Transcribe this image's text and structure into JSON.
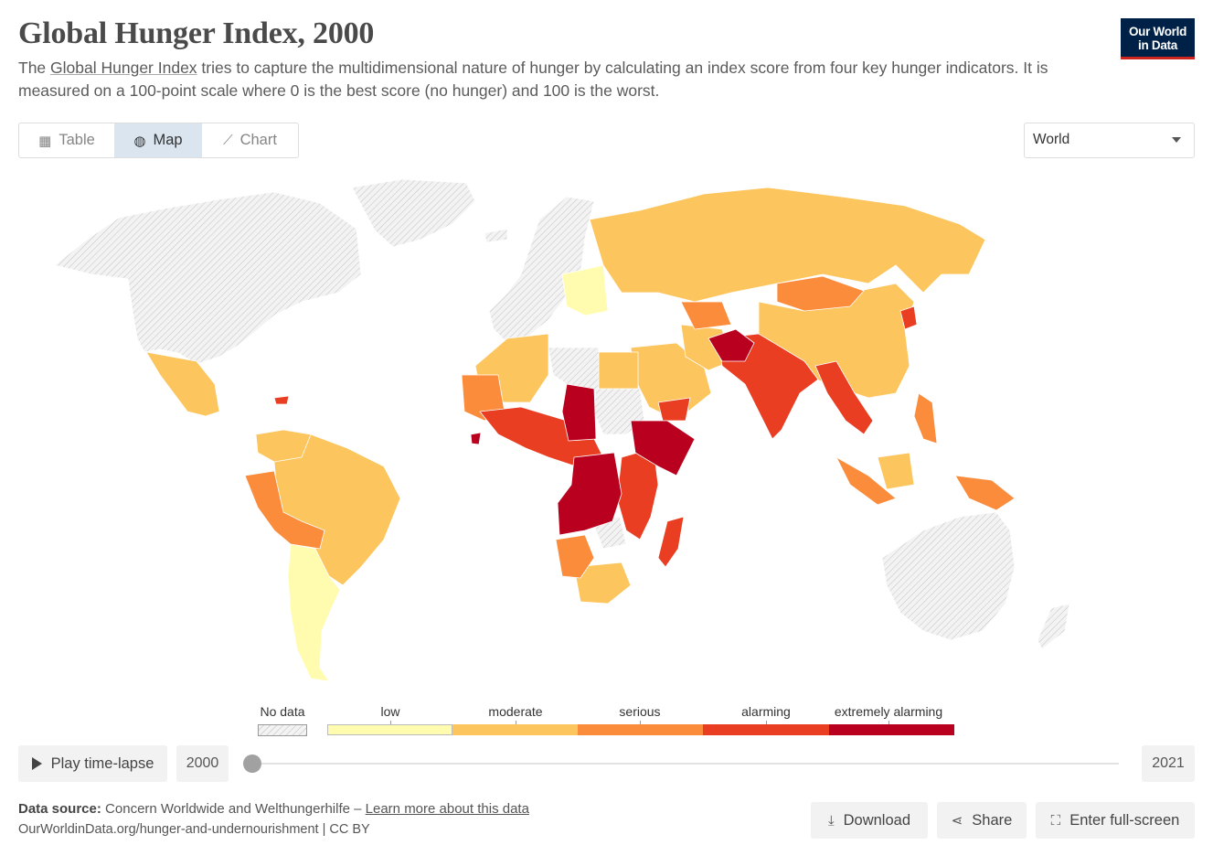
{
  "header": {
    "title": "Global Hunger Index, 2000",
    "subtitle_pre": "The ",
    "subtitle_link": "Global Hunger Index",
    "subtitle_post": " tries to capture the multidimensional nature of hunger by calculating an index score from four key hunger indicators. It is measured on a 100-point scale where 0 is the best score (no hunger) and 100 is the worst.",
    "logo_line1": "Our World",
    "logo_line2": "in Data"
  },
  "tabs": [
    {
      "label": "Table",
      "icon": "table-icon",
      "glyph": "▦"
    },
    {
      "label": "Map",
      "icon": "globe-icon",
      "glyph": "◍",
      "active": true
    },
    {
      "label": "Chart",
      "icon": "line-chart-icon",
      "glyph": "⟋"
    }
  ],
  "region_select": {
    "selected": "World"
  },
  "map": {
    "type": "choropleth",
    "year": "2000",
    "colors": {
      "no_data": "#e6e6e6",
      "low": "#fffcb0",
      "moderate": "#fcc55e",
      "serious": "#fa8c3c",
      "alarming": "#ea3e23",
      "extremely_alarming": "#b9001f"
    }
  },
  "legend": {
    "no_data_label": "No data",
    "bins": [
      {
        "label": "low",
        "color": "#fffcb0"
      },
      {
        "label": "moderate",
        "color": "#fcc55e"
      },
      {
        "label": "serious",
        "color": "#fa8c3c"
      },
      {
        "label": "alarming",
        "color": "#ea3e23"
      },
      {
        "label": "extremely alarming",
        "color": "#b9001f"
      }
    ]
  },
  "timeline": {
    "play_label": "Play time-lapse",
    "start_year": "2000",
    "end_year": "2021",
    "position": 0
  },
  "footer": {
    "source_label": "Data source:",
    "source_text": "Concern Worldwide and Welthungerhilfe – ",
    "source_link": "Learn more about this data",
    "url": "OurWorldinData.org/hunger-and-undernourishment | CC BY"
  },
  "actions": {
    "download": "Download",
    "share": "Share",
    "fullscreen": "Enter full-screen"
  }
}
